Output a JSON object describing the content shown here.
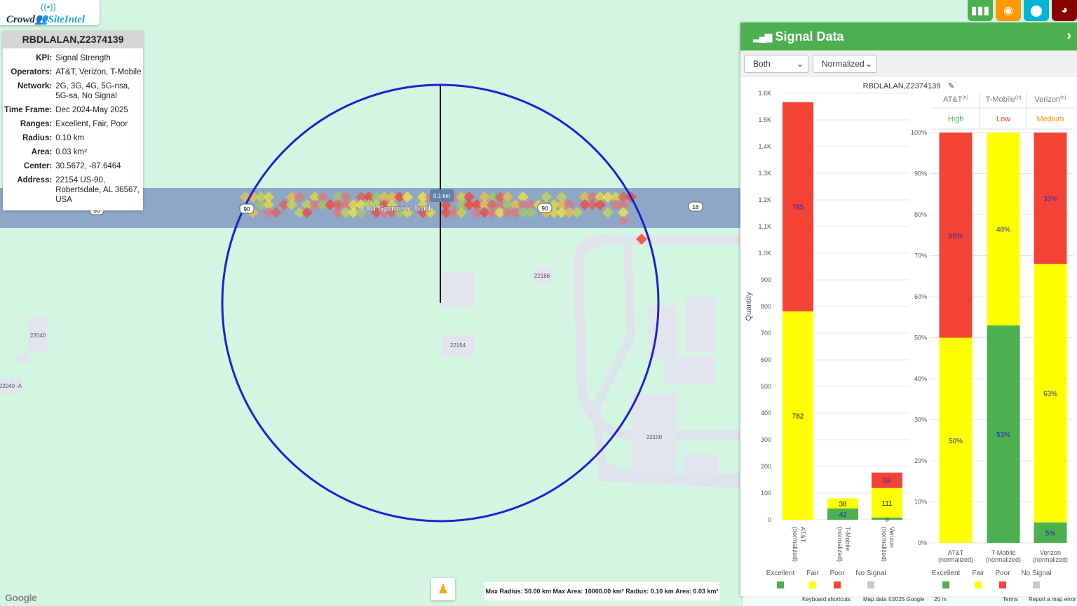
{
  "app": {
    "logo_text_1": "Crowd",
    "logo_text_2": "SiteIntel"
  },
  "info_card": {
    "title": "RBDLALAN,Z2374139",
    "rows": [
      {
        "key": "KPI:",
        "value": "Signal Strength"
      },
      {
        "key": "Operators:",
        "value": "AT&T, Verizon, T-Mobile"
      },
      {
        "key": "Network:",
        "value": "2G, 3G, 4G, 5G-nsa, 5G-sa, No Signal"
      },
      {
        "key": "Time Frame:",
        "value": "Dec 2024-May 2025"
      },
      {
        "key": "Ranges:",
        "value": "Excellent, Fair, Poor"
      },
      {
        "key": "Radius:",
        "value": "0.10 km"
      },
      {
        "key": "Area:",
        "value": "0.03 km²"
      },
      {
        "key": "Center:",
        "value": "30.5672, -87.6464"
      },
      {
        "key": "Address:",
        "value": "22154 US-90, Robertsdale, AL 36567, USA"
      }
    ]
  },
  "map": {
    "road_name": "Old Spanish Trail",
    "route_shields": [
      "90",
      "90",
      "90",
      "16"
    ],
    "radius_label": "0.1 km",
    "address_labels": [
      "22186",
      "22154",
      "22040",
      "22040 -A",
      "22100"
    ],
    "status": "Max Radius: 50.00 km Max Area: 10000.00 km² Radius: 0.10 km Area: 0.03 km²",
    "google_logo": "Google",
    "attribution": {
      "shortcuts": "Keyboard shortcuts",
      "map_data": "Map data ©2025 Google",
      "scale": "20 m",
      "terms": "Terms",
      "report": "Report a map error"
    }
  },
  "top_buttons": [
    {
      "name": "chart",
      "color": "#4caf50"
    },
    {
      "name": "target",
      "color": "#ff9800"
    },
    {
      "name": "pin",
      "color": "#00b4d8"
    },
    {
      "name": "globe",
      "color": "#8b0000"
    }
  ],
  "panel": {
    "title": "Signal Data",
    "select_mode": "Both",
    "select_scale": "Normalized",
    "site_label": "RBDLALAN,Z2374139"
  },
  "colors": {
    "excellent": "#4caf50",
    "fair": "#ffff00",
    "poor": "#f44336",
    "no_signal": "#c8c8c8",
    "high": "#4caf50",
    "low": "#f44336",
    "medium": "#ff9800"
  },
  "chart_data": [
    {
      "type": "bar",
      "stacked": true,
      "ylabel": "Quantity",
      "ylim": [
        0,
        1600
      ],
      "yticks": [
        "0",
        "100",
        "200",
        "300",
        "400",
        "500",
        "600",
        "700",
        "800",
        "900",
        "1.0K",
        "1.1K",
        "1.2K",
        "1.3K",
        "1.4K",
        "1.5K",
        "1.6K"
      ],
      "categories": [
        "AT&T (normalized)",
        "T-Mobile (normalized)",
        "Verizon (normalized)"
      ],
      "series": [
        {
          "name": "Excellent",
          "values": [
            0,
            42,
            8
          ]
        },
        {
          "name": "Fair",
          "values": [
            782,
            38,
            111
          ]
        },
        {
          "name": "Poor",
          "values": [
            785,
            0,
            58
          ]
        },
        {
          "name": "No Signal",
          "values": [
            0,
            0,
            0
          ]
        }
      ],
      "legend": [
        "Excellent",
        "Fair",
        "Poor",
        "No Signal"
      ],
      "legend_position": "bottom"
    },
    {
      "type": "bar",
      "stacked": true,
      "ylim": [
        0,
        100
      ],
      "yticks": [
        "0%",
        "10%",
        "20%",
        "30%",
        "40%",
        "50%",
        "60%",
        "70%",
        "80%",
        "90%",
        "100%"
      ],
      "categories": [
        "AT&T (normalized)",
        "T-Mobile (normalized)",
        "Verizon (normalized)"
      ],
      "series": [
        {
          "name": "Excellent",
          "values": [
            0,
            53,
            5
          ],
          "labels": [
            "",
            "53%",
            "5%"
          ]
        },
        {
          "name": "Fair",
          "values": [
            50,
            48,
            63
          ],
          "labels": [
            "50%",
            "48%",
            "63%"
          ]
        },
        {
          "name": "Poor",
          "values": [
            50,
            0,
            33
          ],
          "labels": [
            "50%",
            "",
            "33%"
          ]
        }
      ],
      "header": [
        {
          "operator": "AT&T",
          "sup": "(n)",
          "rating": "High",
          "rating_color": "high"
        },
        {
          "operator": "T-Mobile",
          "sup": "(n)",
          "rating": "Low",
          "rating_color": "low"
        },
        {
          "operator": "Verizon",
          "sup": "(n)",
          "rating": "Medium",
          "rating_color": "medium"
        }
      ],
      "legend": [
        "Excellent",
        "Fair",
        "Poor",
        "No Signal"
      ],
      "legend_position": "bottom"
    }
  ]
}
